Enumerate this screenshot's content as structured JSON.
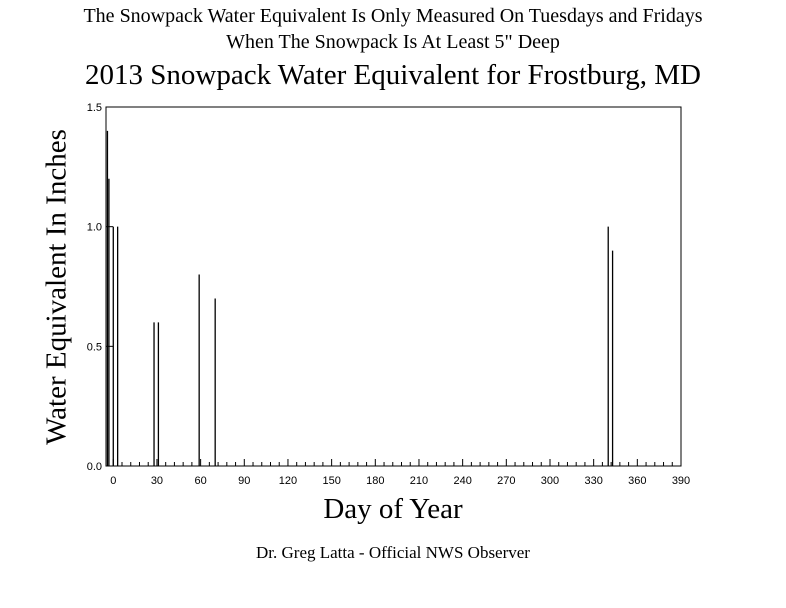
{
  "header": {
    "note_line1": "The Snowpack Water Equivalent Is Only Measured On Tuesdays and Fridays",
    "note_line2": "When The Snowpack Is At Least 5\" Deep"
  },
  "footer": {
    "credit": "Dr. Greg Latta - Official NWS Observer"
  },
  "chart_data": {
    "type": "bar",
    "title": "2013 Snowpack Water Equivalent for Frostburg, MD",
    "xlabel": "Day of Year",
    "ylabel": "Water Equivalent In Inches",
    "xlim": [
      -5,
      390
    ],
    "ylim": [
      0,
      1.5
    ],
    "x_ticks": [
      0,
      30,
      60,
      90,
      120,
      150,
      180,
      210,
      240,
      270,
      300,
      330,
      360,
      390
    ],
    "y_ticks": [
      0.0,
      0.5,
      1.0,
      1.5
    ],
    "y_tick_labels": [
      "0.0",
      "0.5",
      "1.0",
      "1.5"
    ],
    "grid": false,
    "legend": "none",
    "color": "#000000",
    "series": [
      {
        "x": [
          -4,
          -3,
          0,
          3,
          28,
          31,
          59,
          70,
          340,
          343
        ],
        "values": [
          1.4,
          1.2,
          1.0,
          1.0,
          0.6,
          0.6,
          0.8,
          0.7,
          1.0,
          0.9
        ]
      }
    ]
  }
}
